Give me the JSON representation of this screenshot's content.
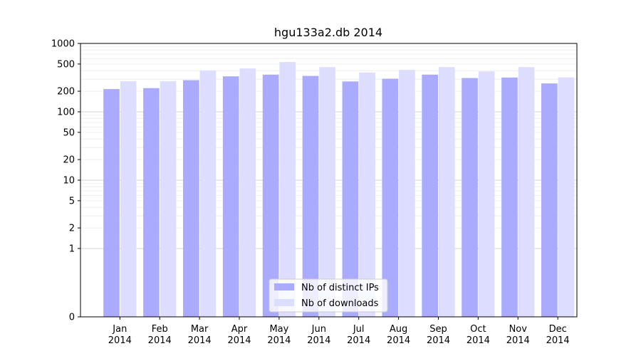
{
  "chart_data": {
    "type": "bar",
    "title": "hgu133a2.db 2014",
    "xlabel": "",
    "ylabel": "",
    "yscale": "symlog",
    "ylim": [
      0,
      1000
    ],
    "yticks": [
      0,
      1,
      2,
      5,
      10,
      20,
      50,
      100,
      200,
      500,
      1000
    ],
    "categories": [
      "Jan\n2014",
      "Feb\n2014",
      "Mar\n2014",
      "Apr\n2014",
      "May\n2014",
      "Jun\n2014",
      "Jul\n2014",
      "Aug\n2014",
      "Sep\n2014",
      "Oct\n2014",
      "Nov\n2014",
      "Dec\n2014"
    ],
    "series": [
      {
        "name": "Nb of distinct IPs",
        "color": "#aaaaff",
        "values": [
          215,
          222,
          290,
          330,
          350,
          335,
          278,
          305,
          350,
          312,
          317,
          260
        ]
      },
      {
        "name": "Nb of downloads",
        "color": "#ddddff",
        "values": [
          280,
          280,
          400,
          430,
          535,
          450,
          375,
          410,
          450,
          390,
          450,
          318
        ]
      }
    ],
    "grid": true,
    "legend_position": "lower center"
  }
}
